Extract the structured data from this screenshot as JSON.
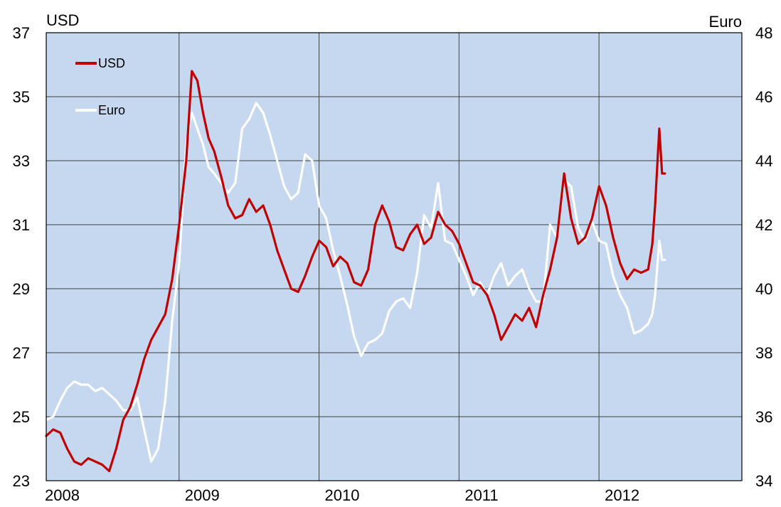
{
  "chart_data": {
    "type": "line",
    "title": "",
    "left_axis": {
      "label": "USD",
      "ylim": [
        23,
        37
      ],
      "ticks": [
        23,
        25,
        27,
        29,
        31,
        33,
        35,
        37
      ]
    },
    "right_axis": {
      "label": "Euro",
      "ylim": [
        34,
        48
      ],
      "ticks": [
        34,
        36,
        38,
        40,
        42,
        44,
        46,
        48
      ]
    },
    "x_axis": {
      "xlim": [
        2008.0,
        2012.97
      ],
      "tick_labels": [
        "2008",
        "2009",
        "2010",
        "2011",
        "2012"
      ],
      "tick_positions": [
        2008,
        2009,
        2010,
        2011,
        2012
      ]
    },
    "grid": true,
    "plot_background": "#c5d8ef",
    "legend": {
      "placement": "top-left",
      "entries": [
        "USD",
        "Euro"
      ]
    },
    "series": [
      {
        "name": "USD",
        "axis": "left",
        "color": "#c00000",
        "x": [
          2008.0,
          2008.05,
          2008.1,
          2008.15,
          2008.2,
          2008.25,
          2008.3,
          2008.35,
          2008.4,
          2008.45,
          2008.5,
          2008.55,
          2008.6,
          2008.65,
          2008.7,
          2008.75,
          2008.8,
          2008.85,
          2008.9,
          2008.95,
          2009.0,
          2009.04,
          2009.08,
          2009.12,
          2009.16,
          2009.2,
          2009.25,
          2009.3,
          2009.35,
          2009.4,
          2009.45,
          2009.5,
          2009.55,
          2009.6,
          2009.65,
          2009.7,
          2009.75,
          2009.8,
          2009.85,
          2009.9,
          2009.95,
          2010.0,
          2010.05,
          2010.1,
          2010.15,
          2010.2,
          2010.25,
          2010.3,
          2010.35,
          2010.4,
          2010.45,
          2010.5,
          2010.55,
          2010.6,
          2010.65,
          2010.7,
          2010.75,
          2010.8,
          2010.85,
          2010.9,
          2010.95,
          2011.0,
          2011.05,
          2011.1,
          2011.15,
          2011.2,
          2011.25,
          2011.3,
          2011.35,
          2011.4,
          2011.45,
          2011.5,
          2011.55,
          2011.6,
          2011.65,
          2011.7,
          2011.75,
          2011.8,
          2011.85,
          2011.9,
          2011.95,
          2012.0,
          2012.05,
          2012.1,
          2012.15,
          2012.2,
          2012.25,
          2012.3,
          2012.33,
          2012.35,
          2012.38,
          2012.4,
          2012.42
        ],
        "values": [
          24.4,
          24.6,
          24.5,
          24.0,
          23.6,
          23.5,
          23.7,
          23.6,
          23.5,
          23.3,
          24.0,
          24.9,
          25.3,
          26.0,
          26.8,
          27.4,
          27.8,
          28.2,
          29.3,
          31.0,
          33.0,
          35.8,
          35.5,
          34.5,
          33.7,
          33.3,
          32.5,
          31.6,
          31.2,
          31.3,
          31.8,
          31.4,
          31.6,
          31.0,
          30.2,
          29.6,
          29.0,
          28.9,
          29.4,
          30.0,
          30.5,
          30.3,
          29.7,
          30.0,
          29.8,
          29.2,
          29.1,
          29.6,
          31.0,
          31.6,
          31.1,
          30.3,
          30.2,
          30.7,
          31.0,
          30.4,
          30.6,
          31.4,
          31.0,
          30.8,
          30.4,
          29.8,
          29.2,
          29.1,
          28.8,
          28.2,
          27.4,
          27.8,
          28.2,
          28.0,
          28.4,
          27.8,
          28.8,
          29.6,
          30.6,
          32.6,
          31.2,
          30.4,
          30.6,
          31.2,
          32.2,
          31.6,
          30.6,
          29.8,
          29.3,
          29.6,
          29.5,
          29.6,
          30.4,
          31.6,
          34.0,
          32.6,
          32.6
        ]
      },
      {
        "name": "Euro",
        "axis": "right",
        "color": "#ffffff",
        "x": [
          2008.0,
          2008.05,
          2008.1,
          2008.15,
          2008.2,
          2008.25,
          2008.3,
          2008.35,
          2008.4,
          2008.45,
          2008.5,
          2008.55,
          2008.6,
          2008.65,
          2008.7,
          2008.75,
          2008.8,
          2008.85,
          2008.9,
          2008.95,
          2009.0,
          2009.04,
          2009.08,
          2009.12,
          2009.16,
          2009.2,
          2009.25,
          2009.3,
          2009.35,
          2009.4,
          2009.45,
          2009.5,
          2009.55,
          2009.6,
          2009.65,
          2009.7,
          2009.75,
          2009.8,
          2009.85,
          2009.9,
          2009.95,
          2010.0,
          2010.05,
          2010.1,
          2010.15,
          2010.2,
          2010.25,
          2010.3,
          2010.35,
          2010.4,
          2010.45,
          2010.5,
          2010.55,
          2010.6,
          2010.65,
          2010.7,
          2010.75,
          2010.8,
          2010.85,
          2010.9,
          2010.95,
          2011.0,
          2011.05,
          2011.1,
          2011.15,
          2011.2,
          2011.25,
          2011.3,
          2011.35,
          2011.4,
          2011.45,
          2011.5,
          2011.55,
          2011.6,
          2011.65,
          2011.7,
          2011.75,
          2011.8,
          2011.85,
          2011.9,
          2011.95,
          2012.0,
          2012.05,
          2012.1,
          2012.15,
          2012.2,
          2012.25,
          2012.3,
          2012.33,
          2012.35,
          2012.38,
          2012.4,
          2012.42
        ],
        "values": [
          35.9,
          36.0,
          36.5,
          36.9,
          37.1,
          37.0,
          37.0,
          36.8,
          36.9,
          36.7,
          36.5,
          36.2,
          36.2,
          36.6,
          35.6,
          34.6,
          35.0,
          36.5,
          39.0,
          40.8,
          44.5,
          45.5,
          45.0,
          44.5,
          43.8,
          43.6,
          43.3,
          43.0,
          43.3,
          45.0,
          45.3,
          45.8,
          45.5,
          44.8,
          44.0,
          43.2,
          42.8,
          43.0,
          44.2,
          44.0,
          42.6,
          42.2,
          41.2,
          40.4,
          39.5,
          38.5,
          37.9,
          38.3,
          38.4,
          38.6,
          39.3,
          39.6,
          39.7,
          39.4,
          40.5,
          42.3,
          41.9,
          43.3,
          41.5,
          41.4,
          40.9,
          40.4,
          39.8,
          40.2,
          39.8,
          40.4,
          40.8,
          40.1,
          40.4,
          40.6,
          40.0,
          39.6,
          39.6,
          42.0,
          41.6,
          43.4,
          43.2,
          41.9,
          41.5,
          42.1,
          41.5,
          41.4,
          40.4,
          39.8,
          39.4,
          38.6,
          38.7,
          38.9,
          39.2,
          39.8,
          41.5,
          40.9,
          40.9
        ]
      }
    ]
  }
}
